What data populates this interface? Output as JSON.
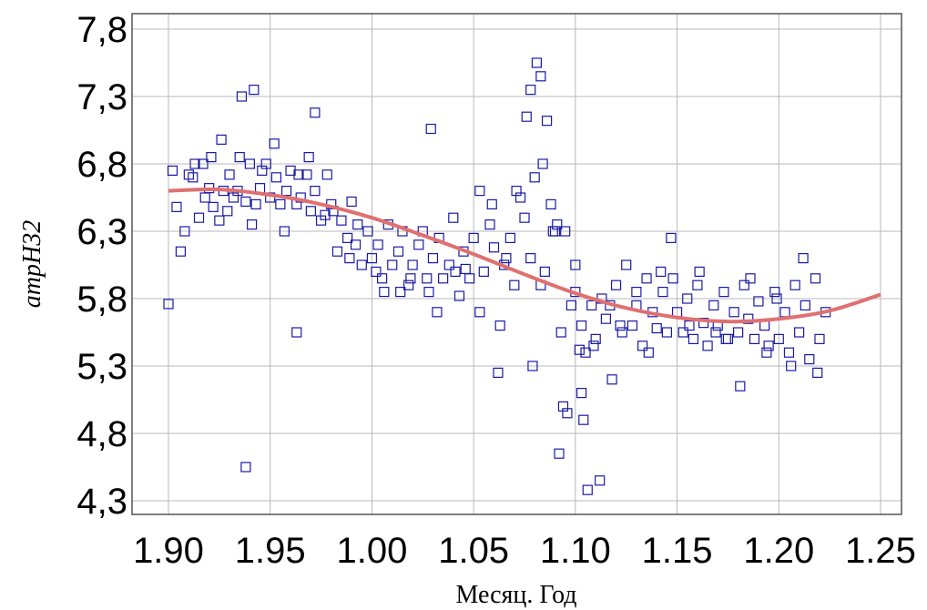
{
  "chart_data": {
    "type": "scatter",
    "title": "",
    "xlabel": "Месяц. Год",
    "ylabel": "атрН32",
    "x_tick_labels": [
      "1.90",
      "1.95",
      "1.00",
      "1.05",
      "1.10",
      "1.15",
      "1.20",
      "1.25"
    ],
    "y_tick_labels": [
      "4,3",
      "4,8",
      "5,3",
      "5,8",
      "6,3",
      "6,8",
      "7,3",
      "7,8"
    ],
    "xlim": [
      0,
      35
    ],
    "ylim": [
      4.3,
      7.8
    ],
    "grid": true,
    "trend": {
      "type": "polynomial-fit",
      "color": "#e07070",
      "x": [
        0,
        2.5,
        5,
        7.5,
        10,
        12.5,
        15,
        17.5,
        20,
        22.5,
        25,
        27.5,
        30,
        32.5,
        35
      ],
      "y": [
        6.6,
        6.61,
        6.57,
        6.5,
        6.4,
        6.27,
        6.13,
        5.98,
        5.84,
        5.73,
        5.66,
        5.63,
        5.65,
        5.71,
        5.83
      ]
    },
    "points": {
      "marker": "square",
      "color": "#1a1aa6",
      "x": [
        0.0,
        0.2,
        0.4,
        0.6,
        0.8,
        1.0,
        1.3,
        1.5,
        1.8,
        2.0,
        2.2,
        2.5,
        2.7,
        3.0,
        3.2,
        3.5,
        3.8,
        4.0,
        4.3,
        4.5,
        4.8,
        5.0,
        5.3,
        5.5,
        5.8,
        6.0,
        6.3,
        6.5,
        6.8,
        7.0,
        7.2,
        7.5,
        7.8,
        8.0,
        8.3,
        8.5,
        8.8,
        9.0,
        9.3,
        9.5,
        9.8,
        10.0,
        10.3,
        10.5,
        10.8,
        11.0,
        11.3,
        11.5,
        11.8,
        12.0,
        12.3,
        12.5,
        12.8,
        13.0,
        13.3,
        13.5,
        13.8,
        14.0,
        14.3,
        14.5,
        14.8,
        15.0,
        15.3,
        15.5,
        15.8,
        16.0,
        16.3,
        16.5,
        16.8,
        17.0,
        17.3,
        17.5,
        17.8,
        18.0,
        18.3,
        18.5,
        18.8,
        19.0,
        19.3,
        19.5,
        19.8,
        20.0,
        20.3,
        20.5,
        20.8,
        21.0,
        21.3,
        21.5,
        21.8,
        22.0,
        22.3,
        22.5,
        22.8,
        23.0,
        23.3,
        23.5,
        23.8,
        24.0,
        24.3,
        24.5,
        24.8,
        25.0,
        25.3,
        25.5,
        25.8,
        26.0,
        26.3,
        26.5,
        26.8,
        27.0,
        27.3,
        27.5,
        27.8,
        28.0,
        28.3,
        28.5,
        28.8,
        29.0,
        29.3,
        29.5,
        29.8,
        30.0,
        30.3,
        30.5,
        30.8,
        31.0,
        31.3,
        31.5,
        31.8,
        32.0,
        32.3,
        1.2,
        2.1,
        3.4,
        4.6,
        5.7,
        6.9,
        8.1,
        9.2,
        10.6,
        11.9,
        13.2,
        14.6,
        15.9,
        17.1,
        18.4,
        19.6,
        20.9,
        22.2,
        23.6,
        24.7,
        26.1,
        27.4,
        28.6,
        29.9,
        31.2,
        1.7,
        2.9,
        4.1,
        5.2,
        6.4,
        7.7,
        8.9,
        10.2,
        11.4,
        12.7,
        14.1,
        15.3,
        16.6,
        17.9,
        19.1,
        20.3,
        21.7,
        23.0,
        24.2,
        25.6,
        26.9,
        28.1,
        29.4,
        30.6,
        31.9,
        2.6,
        3.6,
        4.2,
        7.2,
        12.9,
        17.6,
        17.8,
        18.1,
        18.3,
        18.6,
        18.9,
        19.4,
        19.2,
        21.2,
        20.6,
        3.8,
        6.3,
        16.2,
        20.0,
        20.2,
        20.4
      ],
      "y": [
        5.76,
        6.75,
        6.48,
        6.15,
        6.3,
        6.72,
        6.8,
        6.4,
        6.55,
        6.62,
        6.48,
        6.38,
        6.6,
        6.72,
        6.55,
        6.85,
        6.52,
        6.8,
        6.5,
        6.62,
        6.8,
        6.55,
        6.7,
        6.5,
        6.6,
        6.75,
        6.5,
        6.55,
        6.72,
        6.45,
        6.6,
        6.38,
        6.72,
        6.5,
        6.15,
        6.38,
        6.25,
        6.52,
        6.35,
        6.05,
        6.3,
        6.1,
        6.2,
        5.95,
        6.35,
        6.05,
        6.15,
        6.3,
        5.9,
        6.05,
        6.2,
        6.3,
        5.85,
        6.1,
        6.25,
        5.95,
        6.05,
        6.4,
        5.82,
        6.15,
        5.95,
        6.25,
        5.7,
        6.0,
        6.35,
        6.18,
        5.6,
        6.05,
        6.25,
        5.9,
        6.55,
        6.4,
        6.1,
        6.7,
        5.9,
        6.0,
        6.5,
        6.3,
        5.55,
        6.3,
        5.75,
        5.85,
        5.6,
        5.4,
        5.75,
        5.5,
        5.8,
        5.65,
        5.2,
        5.9,
        5.55,
        6.05,
        5.6,
        5.75,
        5.45,
        5.95,
        5.7,
        5.58,
        5.85,
        5.55,
        5.95,
        5.7,
        5.55,
        5.8,
        5.5,
        5.9,
        5.62,
        5.45,
        5.75,
        5.6,
        5.85,
        5.5,
        5.7,
        5.55,
        5.9,
        5.65,
        5.5,
        5.78,
        5.6,
        5.45,
        5.85,
        5.5,
        5.7,
        5.4,
        5.9,
        5.55,
        5.75,
        5.35,
        5.95,
        5.5,
        5.7,
        6.7,
        6.85,
        6.6,
        6.75,
        6.3,
        6.85,
        6.45,
        6.2,
        5.85,
        5.95,
        5.7,
        6.02,
        6.5,
        6.6,
        6.8,
        4.95,
        5.45,
        5.6,
        5.4,
        6.25,
        6.0,
        5.5,
        5.95,
        5.8,
        6.1,
        6.8,
        6.45,
        6.35,
        6.95,
        6.72,
        6.42,
        6.1,
        6.0,
        5.85,
        5.95,
        6.0,
        6.6,
        6.1,
        5.3,
        6.35,
        5.1,
        5.75,
        5.85,
        6.0,
        5.6,
        5.55,
        5.15,
        5.4,
        5.3,
        5.25,
        6.98,
        7.3,
        7.35,
        7.18,
        7.06,
        7.15,
        7.35,
        7.55,
        7.45,
        7.12,
        6.3,
        5.0,
        4.65,
        4.45,
        4.38,
        4.55,
        5.55,
        5.25,
        6.05,
        5.42,
        4.9
      ]
    }
  }
}
